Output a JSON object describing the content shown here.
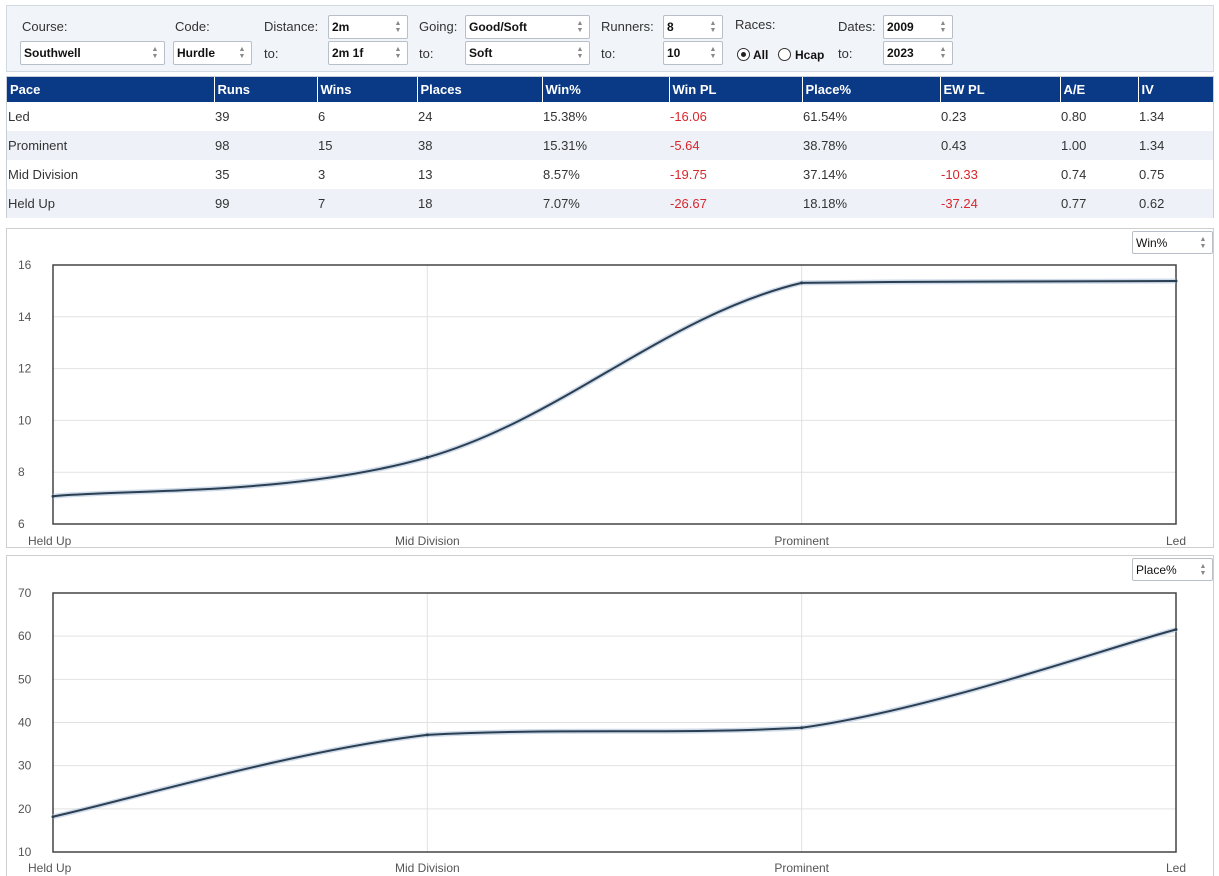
{
  "filters": {
    "course_label": "Course:",
    "course_value": "Southwell",
    "code_label": "Code:",
    "code_value": "Hurdle",
    "distance_label": "Distance:",
    "distance_from": "2m",
    "distance_to_label": "to:",
    "distance_to": "2m 1f",
    "going_label": "Going:",
    "going_from": "Good/Soft",
    "going_to_label": "to:",
    "going_to": "Soft",
    "runners_label": "Runners:",
    "runners_from": "8",
    "runners_to_label": "to:",
    "runners_to": "10",
    "races_label": "Races:",
    "races_all": "All",
    "races_hcap": "Hcap",
    "races_selected": "All",
    "dates_label": "Dates:",
    "dates_from": "2009",
    "dates_to_label": "to:",
    "dates_to": "2023"
  },
  "table": {
    "headers": [
      "Pace",
      "Runs",
      "Wins",
      "Places",
      "Win%",
      "Win PL",
      "Place%",
      "EW PL",
      "A/E",
      "IV"
    ],
    "rows": [
      [
        "Led",
        "39",
        "6",
        "24",
        "15.38%",
        "-16.06",
        "61.54%",
        "0.23",
        "0.80",
        "1.34"
      ],
      [
        "Prominent",
        "98",
        "15",
        "38",
        "15.31%",
        "-5.64",
        "38.78%",
        "0.43",
        "1.00",
        "1.34"
      ],
      [
        "Mid Division",
        "35",
        "3",
        "13",
        "8.57%",
        "-19.75",
        "37.14%",
        "-10.33",
        "0.74",
        "0.75"
      ],
      [
        "Held Up",
        "99",
        "7",
        "18",
        "7.07%",
        "-26.67",
        "18.18%",
        "-37.24",
        "0.77",
        "0.62"
      ]
    ]
  },
  "colors": {
    "header_bg": "#0a3a86",
    "negative": "#d9262c",
    "line": "#2b3f52"
  },
  "chart_data": [
    {
      "type": "line",
      "metric_select": "Win%",
      "categories": [
        "Held Up",
        "Mid Division",
        "Prominent",
        "Led"
      ],
      "series": [
        {
          "values": [
            7.07,
            8.57,
            15.31,
            15.38
          ]
        }
      ],
      "ylim": [
        6,
        16
      ],
      "yticks": [
        "6",
        "8",
        "10",
        "12",
        "14",
        "16"
      ],
      "grid": true
    },
    {
      "type": "line",
      "metric_select": "Place%",
      "categories": [
        "Held Up",
        "Mid Division",
        "Prominent",
        "Led"
      ],
      "series": [
        {
          "values": [
            18.18,
            37.14,
            38.78,
            61.54
          ]
        }
      ],
      "ylim": [
        10,
        70
      ],
      "yticks": [
        "10",
        "20",
        "30",
        "40",
        "50",
        "60",
        "70"
      ],
      "grid": true
    }
  ]
}
